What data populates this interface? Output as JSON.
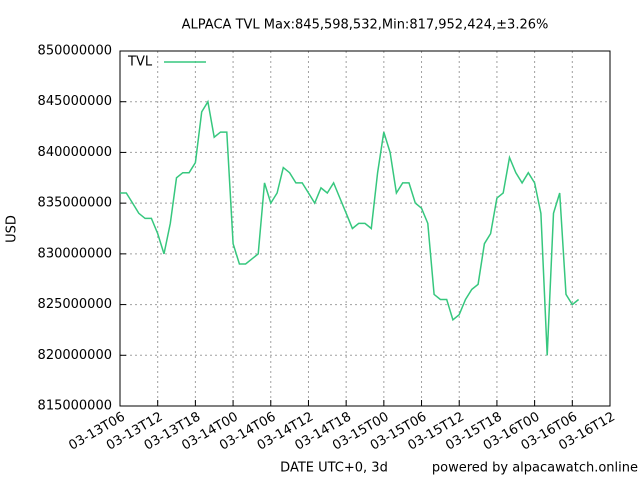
{
  "chart_data": {
    "type": "line",
    "title": "ALPACA TVL Max:845,598,532,Min:817,952,424,±3.26%",
    "x_label": "DATE UTC+0, 3d",
    "y_label": "USD",
    "footer": "powered by alpacawatch.online",
    "legend": "top-left",
    "grid": true,
    "categories": [
      "03-13T06",
      null,
      null,
      null,
      null,
      null,
      "03-13T12",
      null,
      null,
      null,
      null,
      null,
      "03-13T18",
      null,
      null,
      null,
      null,
      null,
      "03-14T00",
      null,
      null,
      null,
      null,
      null,
      "03-14T06",
      null,
      null,
      null,
      null,
      null,
      "03-14T12",
      null,
      null,
      null,
      null,
      null,
      "03-14T18",
      null,
      null,
      null,
      null,
      null,
      "03-15T00",
      null,
      null,
      null,
      null,
      null,
      "03-15T06",
      null,
      null,
      null,
      null,
      null,
      "03-15T12",
      null,
      null,
      null,
      null,
      null,
      "03-15T18",
      null,
      null,
      null,
      null,
      null,
      "03-16T00",
      null,
      null,
      null,
      null,
      null,
      "03-16T06",
      null,
      null,
      null,
      null,
      null,
      "03-16T12"
    ],
    "series": [
      {
        "name": "TVL",
        "color": "#36c77e",
        "values": [
          836000000,
          836000000,
          835000000,
          834000000,
          833500000,
          833500000,
          832000000,
          830000000,
          833000000,
          837500000,
          838000000,
          838000000,
          839000000,
          844000000,
          845000000,
          841500000,
          842000000,
          842000000,
          831000000,
          829000000,
          829000000,
          829500000,
          830000000,
          837000000,
          835000000,
          836000000,
          838500000,
          838000000,
          837000000,
          837000000,
          836000000,
          835000000,
          836500000,
          836000000,
          837000000,
          835500000,
          834000000,
          832500000,
          833000000,
          833000000,
          832500000,
          838000000,
          842000000,
          840000000,
          836000000,
          837000000,
          837000000,
          835000000,
          834500000,
          833000000,
          826000000,
          825500000,
          825500000,
          823500000,
          824000000,
          825500000,
          826500000,
          827000000,
          831000000,
          832000000,
          835500000,
          836000000,
          839500000,
          838000000,
          837000000,
          838000000,
          837000000,
          834000000,
          820000000,
          834000000,
          836000000,
          826000000,
          825000000,
          825500000,
          null,
          null,
          null,
          null,
          null
        ]
      }
    ],
    "ylim": [
      815000000,
      850000000
    ],
    "yticks": [
      815000000,
      820000000,
      825000000,
      830000000,
      835000000,
      840000000,
      845000000,
      850000000
    ]
  }
}
